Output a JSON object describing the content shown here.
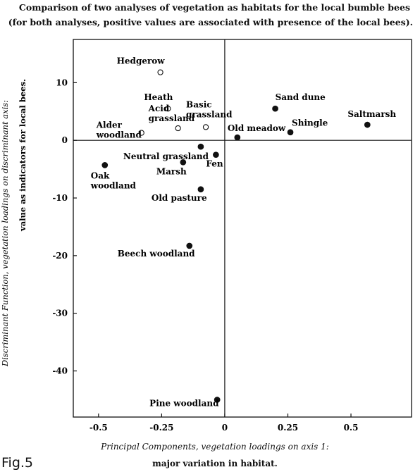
{
  "figure_label": "Fig.5",
  "chart_data": {
    "type": "scatter",
    "title": "Comparison of two analyses of vegetation as habitats for the local bumble bees",
    "subtitle": "(for both analyses, positive values are associated with presence of the local bees).",
    "xlabel": "Principal Components, vegetation loadings on axis 1:",
    "xlabel_line2": "major variation in habitat.",
    "ylabel": "Discriminant Function, vegetation loadings on discriminant axis:",
    "ylabel_line2": "value as indicators for local bees.",
    "xlim": [
      -0.6,
      0.74
    ],
    "ylim": [
      -48,
      17.5
    ],
    "xticks": [
      -0.5,
      -0.25,
      0,
      0.25,
      0.5
    ],
    "xtick_labels": [
      "-0.5",
      "-0.25",
      "0",
      "0.25",
      "0.5"
    ],
    "yticks": [
      10,
      0,
      -10,
      -20,
      -30,
      -40
    ],
    "ytick_labels": [
      "10",
      "0",
      "-10",
      "-20",
      "-30",
      "-40"
    ],
    "grid": false,
    "reference_lines": {
      "x": 0,
      "y": 0
    },
    "marker_legend": {
      "open": "open circle",
      "filled": "filled circle"
    },
    "points": [
      {
        "label": "Hedgerow",
        "x": -0.255,
        "y": 11.8,
        "marker": "open"
      },
      {
        "label": "Heath",
        "x": -0.225,
        "y": 5.5,
        "marker": "open"
      },
      {
        "label": "Basic grassland",
        "x": -0.075,
        "y": 2.3,
        "marker": "open"
      },
      {
        "label": "Acid grassland",
        "x": -0.185,
        "y": 2.1,
        "marker": "open"
      },
      {
        "label": "Alder woodland",
        "x": -0.33,
        "y": 1.3,
        "marker": "open"
      },
      {
        "label": "Sand dune",
        "x": 0.2,
        "y": 5.5,
        "marker": "filled"
      },
      {
        "label": "Saltmarsh",
        "x": 0.565,
        "y": 2.7,
        "marker": "filled"
      },
      {
        "label": "Shingle",
        "x": 0.26,
        "y": 1.4,
        "marker": "filled"
      },
      {
        "label": "Old meadow",
        "x": 0.05,
        "y": 0.5,
        "marker": "filled"
      },
      {
        "label": "Neutral grassland",
        "x": -0.095,
        "y": -1.1,
        "marker": "filled"
      },
      {
        "label": "Fen",
        "x": -0.035,
        "y": -2.5,
        "marker": "filled"
      },
      {
        "label": "Marsh",
        "x": -0.165,
        "y": -3.8,
        "marker": "filled"
      },
      {
        "label": "Oak woodland",
        "x": -0.475,
        "y": -4.3,
        "marker": "filled"
      },
      {
        "label": "Old pasture",
        "x": -0.095,
        "y": -8.5,
        "marker": "filled"
      },
      {
        "label": "Beech woodland",
        "x": -0.14,
        "y": -18.3,
        "marker": "filled"
      },
      {
        "label": "Pine woodland",
        "x": -0.03,
        "y": -45.0,
        "marker": "filled"
      }
    ]
  }
}
